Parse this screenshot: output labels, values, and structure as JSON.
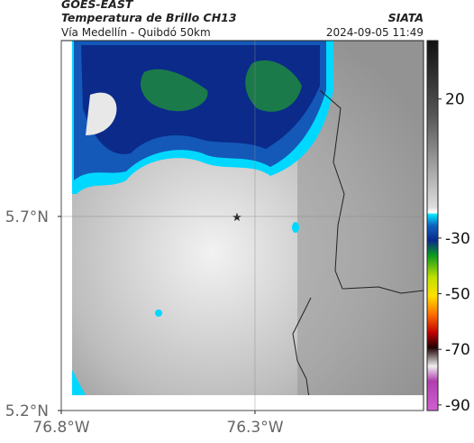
{
  "header": {
    "source": "GOES-EAST",
    "title": "Temperatura de Brillo CH13",
    "credit": "SIATA",
    "subtitle": "Vía Medellín - Quibdó 50km",
    "timestamp": "2024-09-05 11:49"
  },
  "map": {
    "lonlim": [
      -76.8,
      -75.865
    ],
    "latlim": [
      5.2,
      6.153
    ],
    "lonticks": [
      {
        "value": -76.8,
        "label": "76.8°W"
      },
      {
        "value": -76.3,
        "label": "76.3°W"
      }
    ],
    "latticks": [
      {
        "value": 5.2,
        "label": "5.2°N"
      },
      {
        "value": 5.7,
        "label": "5.7°N"
      }
    ]
  },
  "colorbar": {
    "lim": [
      -92,
      41
    ],
    "ticks": [
      20,
      -30,
      -50,
      -70,
      -90
    ]
  }
}
